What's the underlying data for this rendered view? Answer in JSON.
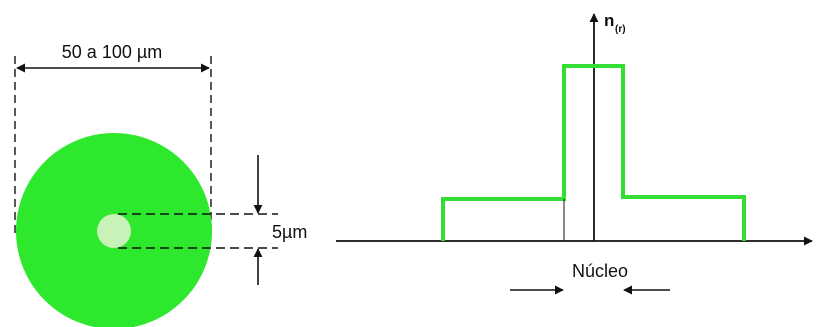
{
  "fiber_cross_section": {
    "outer_diameter_label": "50 a 100 µm",
    "core_diameter_label": "5µm",
    "cladding_color": "#2ee82e",
    "core_color": "#c8f2b8"
  },
  "index_profile": {
    "axis_label_main": "n",
    "axis_label_sub": "(r)",
    "core_label": "Núcleo",
    "profile_color": "#33dd33"
  }
}
